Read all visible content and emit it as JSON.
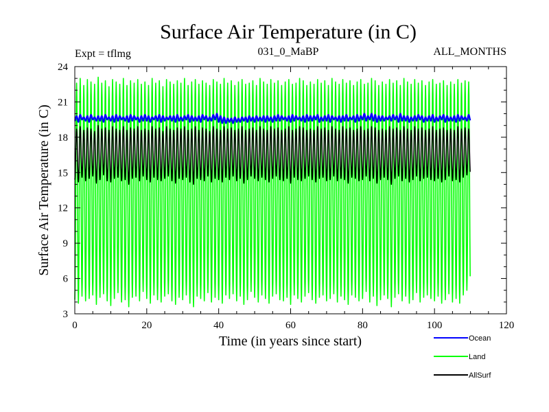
{
  "chart_data": {
    "type": "line",
    "title": "Surface Air Temperature (in C)",
    "expt_label": "Expt = tflmg",
    "run_label": "031_0_MaBP",
    "months_label": "ALL_MONTHS",
    "xlabel": "Time (in years since start)",
    "ylabel": "Surface Air Temperature (in C)",
    "xlim": [
      0,
      120
    ],
    "ylim": [
      3,
      24
    ],
    "x_ticks": [
      0,
      20,
      40,
      60,
      80,
      100,
      120
    ],
    "y_ticks": [
      3,
      6,
      9,
      12,
      15,
      18,
      21,
      24
    ],
    "x_tick_labels": [
      "0",
      "20",
      "40",
      "60",
      "80",
      "100",
      "120"
    ],
    "y_tick_labels": [
      "3",
      "6",
      "9",
      "12",
      "15",
      "18",
      "21",
      "24"
    ],
    "grid": false,
    "legend_position": "bottom-right outside",
    "n_years": 110,
    "series": [
      {
        "name": "Land",
        "color": "#00ff00",
        "annual_min": [
          4.2,
          3.9,
          4.5,
          4.1,
          4.3,
          4.6,
          3.8,
          4.4,
          4.7,
          4.1,
          3.7,
          4.3,
          4.8,
          4.0,
          4.2,
          3.6,
          4.4,
          4.5,
          4.1,
          4.9,
          4.3,
          3.9,
          4.6,
          4.2,
          4.0,
          4.5,
          4.7,
          4.1,
          3.8,
          4.4,
          4.2,
          4.6,
          3.9,
          3.6,
          4.5,
          4.3,
          4.1,
          4.8,
          4.0,
          4.4,
          4.2,
          3.9,
          4.6,
          4.3,
          4.7,
          4.1,
          4.5,
          3.8,
          4.2,
          4.9,
          4.4,
          4.0,
          4.6,
          4.3,
          3.9,
          4.5,
          4.7,
          4.2,
          4.1,
          4.4,
          3.8,
          4.6,
          4.3,
          4.0,
          4.5,
          4.8,
          4.2,
          3.9,
          4.4,
          4.6,
          4.1,
          4.3,
          4.7,
          4.0,
          4.5,
          4.2,
          3.8,
          4.6,
          4.4,
          4.1,
          4.3,
          4.9,
          4.0,
          4.5,
          3.7,
          4.2,
          4.6,
          4.3,
          3.6,
          4.4,
          4.7,
          4.1,
          4.5,
          3.9,
          4.2,
          4.8,
          4.0,
          4.4,
          4.6,
          4.3,
          4.1,
          4.5,
          3.9,
          4.2,
          4.7,
          4.0,
          4.3,
          3.9,
          4.6,
          5.0
        ],
        "annual_max": [
          22.6,
          23.0,
          22.4,
          22.9,
          22.7,
          22.5,
          23.1,
          22.6,
          22.8,
          22.3,
          22.9,
          22.7,
          22.5,
          23.0,
          22.4,
          22.8,
          22.6,
          22.9,
          22.5,
          22.7,
          22.4,
          23.0,
          22.6,
          22.8,
          22.3,
          22.9,
          22.7,
          22.5,
          22.8,
          22.6,
          23.0,
          22.4,
          22.7,
          22.9,
          22.5,
          22.8,
          22.6,
          22.4,
          22.9,
          22.7,
          22.5,
          23.0,
          22.6,
          22.8,
          22.4,
          22.7,
          22.9,
          22.5,
          22.6,
          22.8,
          22.4,
          23.0,
          22.7,
          22.5,
          22.9,
          22.6,
          22.8,
          22.4,
          22.7,
          22.9,
          22.5,
          22.6,
          23.0,
          22.8,
          22.4,
          22.7,
          22.5,
          22.9,
          22.6,
          22.8,
          22.4,
          23.0,
          22.7,
          22.5,
          22.9,
          22.6,
          22.8,
          22.4,
          22.7,
          22.9,
          22.5,
          22.6,
          23.0,
          22.8,
          22.4,
          22.7,
          22.5,
          22.9,
          22.6,
          22.8,
          22.4,
          23.0,
          22.7,
          22.5,
          22.9,
          22.6,
          22.8,
          22.4,
          22.7,
          22.9,
          22.5,
          22.6,
          22.8,
          22.4,
          22.7,
          22.5,
          22.9,
          22.6,
          22.8,
          22.7
        ]
      },
      {
        "name": "AllSurf",
        "color": "#000000",
        "annual_min": [
          14.4,
          14.2,
          14.6,
          14.3,
          14.5,
          14.7,
          14.1,
          14.4,
          14.8,
          14.3,
          14.2,
          14.5,
          14.6,
          14.3,
          14.4,
          14.0,
          14.5,
          14.6,
          14.3,
          14.7,
          14.4,
          14.2,
          14.6,
          14.4,
          14.3,
          14.5,
          14.7,
          14.3,
          14.1,
          14.5,
          14.4,
          14.6,
          14.2,
          14.0,
          14.5,
          14.4,
          14.3,
          14.7,
          14.2,
          14.5,
          14.4,
          14.2,
          14.6,
          14.4,
          14.7,
          14.3,
          14.5,
          14.1,
          14.4,
          14.7,
          14.5,
          14.3,
          14.6,
          14.4,
          14.2,
          14.5,
          14.7,
          14.4,
          14.3,
          14.5,
          14.1,
          14.6,
          14.4,
          14.3,
          14.5,
          14.7,
          14.4,
          14.2,
          14.5,
          14.6,
          14.3,
          14.4,
          14.7,
          14.3,
          14.5,
          14.4,
          14.1,
          14.6,
          14.5,
          14.3,
          14.4,
          14.7,
          14.3,
          14.5,
          14.1,
          14.4,
          14.6,
          14.4,
          14.0,
          14.5,
          14.7,
          14.3,
          14.5,
          14.2,
          14.4,
          14.7,
          14.3,
          14.5,
          14.6,
          14.4,
          14.3,
          14.5,
          14.2,
          14.4,
          14.7,
          14.3,
          14.4,
          14.2,
          14.6,
          14.8
        ],
        "annual_max": [
          18.7,
          18.9,
          18.6,
          18.8,
          18.7,
          18.5,
          19.0,
          18.7,
          18.8,
          18.6,
          18.9,
          18.7,
          18.6,
          18.9,
          18.6,
          18.8,
          18.7,
          18.9,
          18.6,
          18.7,
          18.6,
          18.9,
          18.7,
          18.8,
          18.5,
          18.9,
          18.7,
          18.6,
          18.8,
          18.7,
          18.9,
          18.6,
          18.7,
          18.9,
          18.6,
          18.8,
          18.7,
          18.5,
          18.9,
          18.7,
          18.6,
          18.9,
          18.7,
          18.8,
          18.6,
          18.7,
          18.9,
          18.6,
          18.7,
          18.8,
          18.6,
          18.9,
          18.7,
          18.6,
          18.9,
          18.7,
          18.8,
          18.6,
          18.7,
          18.9,
          18.6,
          18.7,
          18.9,
          18.8,
          18.6,
          18.7,
          18.6,
          18.9,
          18.7,
          18.8,
          18.6,
          18.9,
          18.7,
          18.6,
          18.9,
          18.7,
          18.8,
          18.6,
          18.7,
          18.9,
          18.6,
          18.7,
          18.9,
          18.8,
          18.6,
          18.7,
          18.6,
          18.9,
          18.7,
          18.8,
          18.6,
          18.9,
          18.7,
          18.6,
          18.9,
          18.7,
          18.8,
          18.6,
          18.7,
          18.9,
          18.6,
          18.7,
          18.8,
          18.6,
          18.7,
          18.6,
          18.9,
          18.7,
          18.8,
          18.7
        ]
      },
      {
        "name": "Ocean",
        "color": "#0000ff",
        "annual_min": [
          19.4,
          19.3,
          19.5,
          19.4,
          19.3,
          19.5,
          19.4,
          19.4,
          19.3,
          19.5,
          19.4,
          19.3,
          19.4,
          19.5,
          19.4,
          19.3,
          19.4,
          19.5,
          19.3,
          19.4,
          19.4,
          19.3,
          19.5,
          19.4,
          19.3,
          19.4,
          19.5,
          19.4,
          19.3,
          19.4,
          19.4,
          19.5,
          19.3,
          19.4,
          19.4,
          19.3,
          19.5,
          19.4,
          19.4,
          19.5,
          19.3,
          19.2,
          19.2,
          19.3,
          19.2,
          19.3,
          19.3,
          19.4,
          19.3,
          19.4,
          19.3,
          19.4,
          19.4,
          19.3,
          19.4,
          19.3,
          19.4,
          19.4,
          19.5,
          19.4,
          19.3,
          19.4,
          19.5,
          19.4,
          19.3,
          19.4,
          19.4,
          19.5,
          19.3,
          19.4,
          19.4,
          19.3,
          19.5,
          19.4,
          19.3,
          19.4,
          19.4,
          19.5,
          19.3,
          19.4,
          19.5,
          19.4,
          19.5,
          19.4,
          19.3,
          19.4,
          19.4,
          19.5,
          19.4,
          19.5,
          19.3,
          19.4,
          19.4,
          19.3,
          19.4,
          19.4,
          19.5,
          19.3,
          19.4,
          19.4,
          19.3,
          19.4,
          19.5,
          19.3,
          19.4,
          19.4,
          19.3,
          19.4,
          19.5,
          19.4
        ],
        "annual_max": [
          19.8,
          19.9,
          19.7,
          19.8,
          19.9,
          19.7,
          19.8,
          19.8,
          19.9,
          19.7,
          19.8,
          19.9,
          19.8,
          19.7,
          19.8,
          19.9,
          19.8,
          19.7,
          19.8,
          19.9,
          19.8,
          19.7,
          19.8,
          19.9,
          19.8,
          19.7,
          19.8,
          19.8,
          19.9,
          19.7,
          19.8,
          19.9,
          19.8,
          19.7,
          19.8,
          19.9,
          19.8,
          19.7,
          19.9,
          20.0,
          19.8,
          19.7,
          19.6,
          19.6,
          19.7,
          19.6,
          19.7,
          19.7,
          19.8,
          19.7,
          19.8,
          19.7,
          19.8,
          19.8,
          19.7,
          19.8,
          19.9,
          19.8,
          19.7,
          19.8,
          19.9,
          19.8,
          19.7,
          19.8,
          19.9,
          19.8,
          19.8,
          19.9,
          19.7,
          19.8,
          19.9,
          19.8,
          19.7,
          19.8,
          19.8,
          19.9,
          19.7,
          19.8,
          19.9,
          19.8,
          20.0,
          19.8,
          20.0,
          19.9,
          19.8,
          19.8,
          19.7,
          19.8,
          19.9,
          19.8,
          20.0,
          19.8,
          19.8,
          19.7,
          19.8,
          19.9,
          19.8,
          19.7,
          19.8,
          19.9,
          19.7,
          19.8,
          19.9,
          19.8,
          19.7,
          19.8,
          19.9,
          19.8,
          19.7,
          19.9
        ]
      }
    ],
    "legend": [
      {
        "name": "Ocean",
        "color": "#0000ff"
      },
      {
        "name": "Land",
        "color": "#00ff00"
      },
      {
        "name": "AllSurf",
        "color": "#000000"
      }
    ]
  }
}
